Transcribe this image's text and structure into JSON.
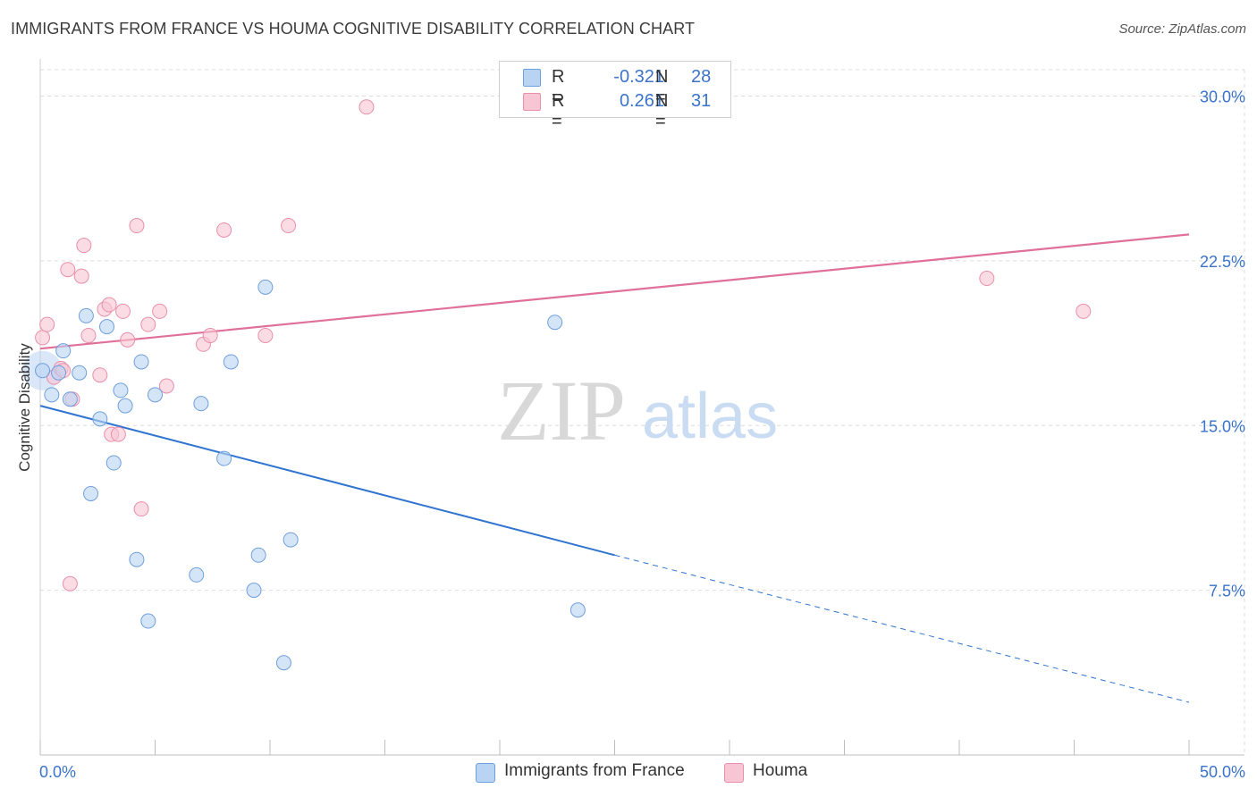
{
  "title": "IMMIGRANTS FROM FRANCE VS HOUMA COGNITIVE DISABILITY CORRELATION CHART",
  "source": "Source: ZipAtlas.com",
  "watermark": {
    "zip": "ZIP",
    "atlas": "atlas"
  },
  "legend": {
    "r_label": "R =",
    "n_label": "N =",
    "rows": [
      {
        "name": "Immigrants from France",
        "r": "-0.321",
        "n": "28"
      },
      {
        "name": "Houma",
        "r": "0.261",
        "n": "31"
      }
    ]
  },
  "colors": {
    "blue_fill": "#b9d3f3",
    "blue_stroke": "#6f9fdc",
    "blue_line": "#2f74d0",
    "pink_fill": "#f8c5d4",
    "pink_stroke": "#e98fab",
    "pink_line": "#e0709a",
    "tick_label": "#3a73c9",
    "grid": "#dcdcdc"
  },
  "chart_data": {
    "type": "scatter",
    "title": "IMMIGRANTS FROM FRANCE VS HOUMA COGNITIVE DISABILITY CORRELATION CHART",
    "xlabel": "",
    "ylabel": "Cognitive Disability",
    "xlim": [
      0,
      50
    ],
    "ylim": [
      0,
      31.2
    ],
    "x_tick_labels": [
      "0.0%",
      "50.0%"
    ],
    "y_ticks": [
      7.5,
      15.0,
      22.5,
      30.0
    ],
    "y_tick_labels": [
      "7.5%",
      "15.0%",
      "22.5%",
      "30.0%"
    ],
    "grid": true,
    "legend_position": "bottom",
    "series": [
      {
        "name": "Immigrants from France",
        "color": "#6f9fdc",
        "points": [
          [
            0.1,
            17.5
          ],
          [
            0.5,
            16.4
          ],
          [
            0.8,
            17.4
          ],
          [
            1.0,
            18.4
          ],
          [
            1.3,
            16.2
          ],
          [
            1.7,
            17.4
          ],
          [
            2.0,
            20.0
          ],
          [
            2.2,
            11.9
          ],
          [
            2.6,
            15.3
          ],
          [
            2.9,
            19.5
          ],
          [
            3.2,
            13.3
          ],
          [
            3.5,
            16.6
          ],
          [
            3.7,
            15.9
          ],
          [
            4.2,
            8.9
          ],
          [
            4.4,
            17.9
          ],
          [
            4.7,
            6.1
          ],
          [
            5.0,
            16.4
          ],
          [
            6.8,
            8.2
          ],
          [
            7.0,
            16.0
          ],
          [
            8.0,
            13.5
          ],
          [
            8.3,
            17.9
          ],
          [
            9.3,
            7.5
          ],
          [
            9.5,
            9.1
          ],
          [
            9.8,
            21.3
          ],
          [
            10.6,
            4.2
          ],
          [
            10.9,
            9.8
          ],
          [
            22.4,
            19.7
          ],
          [
            23.4,
            6.6
          ]
        ],
        "trend": {
          "x": [
            0,
            25
          ],
          "y": [
            15.9,
            9.1
          ],
          "dashed_to": [
            50,
            2.4
          ]
        }
      },
      {
        "name": "Houma",
        "color": "#e98fab",
        "points": [
          [
            0.1,
            19.0
          ],
          [
            0.3,
            19.6
          ],
          [
            0.6,
            17.2
          ],
          [
            0.9,
            17.6
          ],
          [
            1.0,
            17.5
          ],
          [
            1.2,
            22.1
          ],
          [
            1.4,
            16.2
          ],
          [
            1.8,
            21.8
          ],
          [
            1.9,
            23.2
          ],
          [
            2.1,
            19.1
          ],
          [
            2.6,
            17.3
          ],
          [
            2.8,
            20.3
          ],
          [
            3.0,
            20.5
          ],
          [
            3.1,
            14.6
          ],
          [
            3.4,
            14.6
          ],
          [
            3.6,
            20.2
          ],
          [
            3.8,
            18.9
          ],
          [
            4.2,
            24.1
          ],
          [
            4.4,
            11.2
          ],
          [
            4.7,
            19.6
          ],
          [
            5.2,
            20.2
          ],
          [
            5.5,
            16.8
          ],
          [
            7.1,
            18.7
          ],
          [
            7.4,
            19.1
          ],
          [
            8.0,
            23.9
          ],
          [
            9.8,
            19.1
          ],
          [
            10.8,
            24.1
          ],
          [
            14.2,
            29.5
          ],
          [
            1.3,
            7.8
          ],
          [
            41.2,
            21.7
          ],
          [
            45.4,
            20.2
          ]
        ],
        "trend": {
          "x": [
            0,
            50
          ],
          "y": [
            18.5,
            23.7
          ]
        }
      }
    ]
  }
}
